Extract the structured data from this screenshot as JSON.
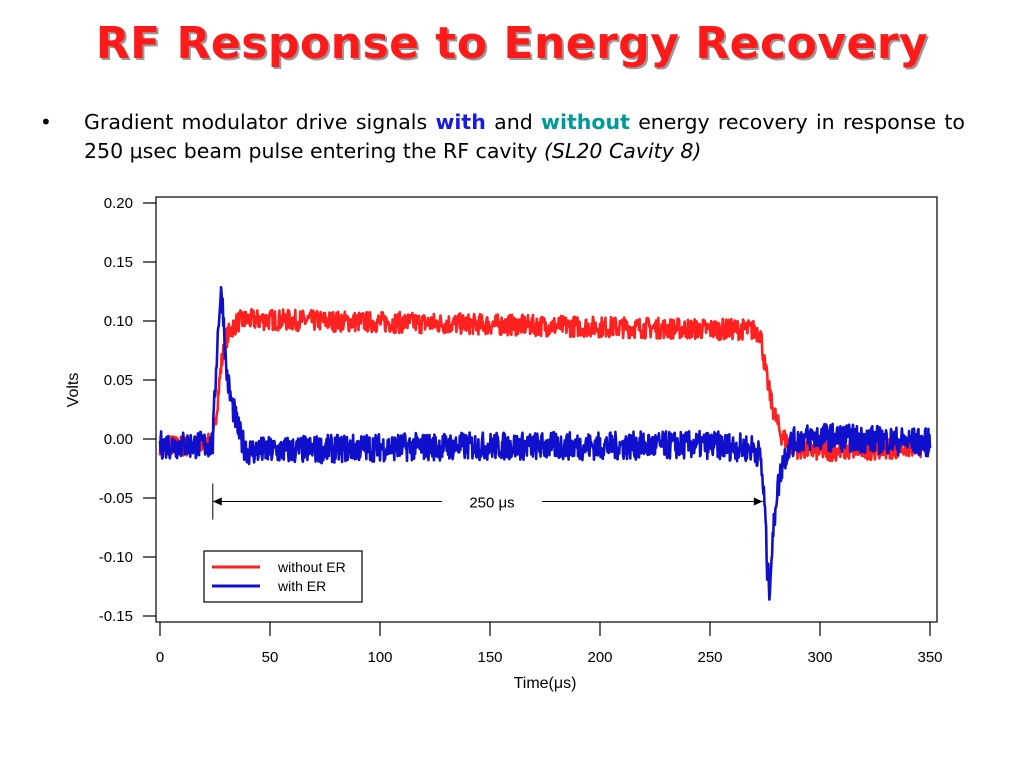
{
  "slide": {
    "title": "RF Response to Energy Recovery",
    "bullet": {
      "marker": "•",
      "text_a": "Gradient modulator drive signals",
      "kw_with": "with",
      "text_b": "and",
      "kw_without": "without",
      "text_c": "energy recovery in response to 250 μsec beam pulse entering the RF cavity",
      "text_italic": "(SL20 Cavity 8)"
    }
  },
  "chart_data": {
    "type": "line",
    "title": "",
    "xlabel": "Time(μs)",
    "ylabel": "Volts",
    "xlim": [
      0,
      350
    ],
    "ylim": [
      -0.15,
      0.2
    ],
    "x_ticks": [
      "0",
      "50",
      "100",
      "150",
      "200",
      "250",
      "300",
      "350"
    ],
    "y_ticks": [
      "0.20",
      "0.15",
      "0.10",
      "0.05",
      "0.00",
      "-0.05",
      "-0.10",
      "-0.15"
    ],
    "grid": false,
    "legend_placement": "bottom-left",
    "annotation": {
      "text": "250 μs",
      "x_start": 24,
      "x_end": 274,
      "y": -0.053
    },
    "series": [
      {
        "name": "without ER",
        "color": "#ff2020",
        "noise": 0.009,
        "x": [
          0,
          10,
          20,
          24,
          26,
          28,
          30,
          33,
          36,
          40,
          50,
          75,
          100,
          125,
          150,
          175,
          200,
          225,
          250,
          265,
          270,
          273,
          275,
          278,
          282,
          286,
          290,
          300,
          320,
          340,
          350
        ],
        "y": [
          -0.005,
          -0.006,
          -0.005,
          -0.004,
          0.03,
          0.065,
          0.085,
          0.095,
          0.1,
          0.101,
          0.101,
          0.1,
          0.099,
          0.098,
          0.097,
          0.096,
          0.095,
          0.094,
          0.093,
          0.093,
          0.092,
          0.09,
          0.06,
          0.03,
          0.005,
          -0.005,
          -0.008,
          -0.01,
          -0.009,
          -0.007,
          -0.006
        ]
      },
      {
        "name": "with ER",
        "color": "#1010cc",
        "noise": 0.012,
        "x": [
          0,
          10,
          20,
          24,
          25,
          26,
          27,
          28,
          29,
          30,
          32,
          34,
          36,
          38,
          40,
          50,
          100,
          150,
          200,
          250,
          270,
          273,
          275,
          276,
          277,
          278,
          280,
          283,
          286,
          290,
          300,
          320,
          340,
          350
        ],
        "y": [
          -0.005,
          -0.005,
          -0.005,
          -0.004,
          0.04,
          0.08,
          0.11,
          0.125,
          0.1,
          0.06,
          0.035,
          0.02,
          0.005,
          -0.005,
          -0.01,
          -0.01,
          -0.007,
          -0.006,
          -0.006,
          -0.005,
          -0.008,
          -0.015,
          -0.06,
          -0.11,
          -0.125,
          -0.1,
          -0.05,
          -0.02,
          -0.005,
          0.0,
          0.002,
          0.0,
          -0.002,
          -0.003
        ]
      }
    ]
  }
}
